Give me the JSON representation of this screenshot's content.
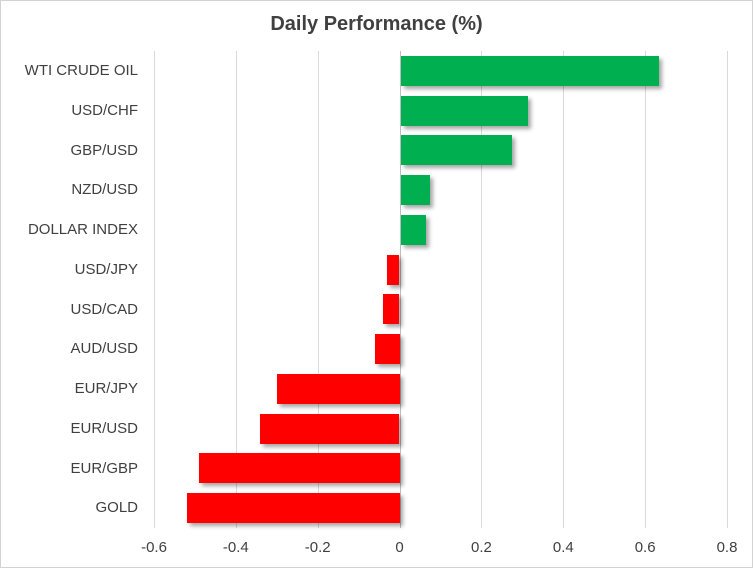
{
  "chart": {
    "title": "Daily Performance (%)"
  },
  "colors": {
    "positive": "#00B050",
    "negative": "#FF0000",
    "gridline": "#D9D9D9",
    "zero_axis": "#BFBFBF",
    "text": "#404040",
    "border": "#D3D3D3"
  },
  "chart_data": {
    "type": "bar",
    "orientation": "horizontal",
    "title": "Daily Performance (%)",
    "categories": [
      "WTI CRUDE OIL",
      "USD/CHF",
      "GBP/USD",
      "NZD/USD",
      "DOLLAR INDEX",
      "USD/JPY",
      "USD/CAD",
      "AUD/USD",
      "EUR/JPY",
      "EUR/USD",
      "EUR/GBP",
      "GOLD"
    ],
    "values": [
      0.63,
      0.31,
      0.27,
      0.07,
      0.06,
      -0.03,
      -0.04,
      -0.06,
      -0.3,
      -0.34,
      -0.49,
      -0.52
    ],
    "xlabel": "",
    "ylabel": "",
    "xlim": [
      -0.6,
      0.8
    ],
    "xticks": [
      -0.6,
      -0.4,
      -0.2,
      0,
      0.2,
      0.4,
      0.6,
      0.8
    ],
    "xtick_labels": [
      "-0.6",
      "-0.4",
      "-0.2",
      "0",
      "0.2",
      "0.4",
      "0.6",
      "0.8"
    ],
    "grid": true,
    "legend": false
  }
}
